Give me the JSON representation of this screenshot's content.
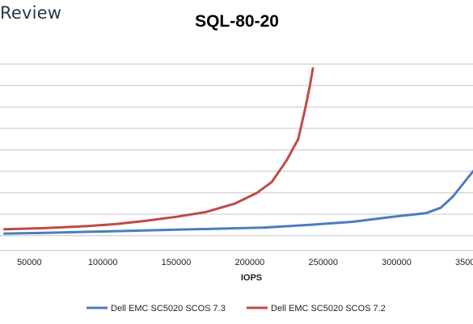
{
  "brand": {
    "text": "Review"
  },
  "chart_data": {
    "type": "line",
    "title": "SQL-80-20",
    "xlabel": "IOPS",
    "ylabel": "",
    "xlim": [
      30000,
      352000
    ],
    "ylim": [
      -5,
      88
    ],
    "x_tick_labels": [
      "50000",
      "100000",
      "150000",
      "200000",
      "250000",
      "300000",
      "350000"
    ],
    "x_ticks": [
      50000,
      100000,
      150000,
      200000,
      250000,
      300000,
      350000
    ],
    "y_grid": [
      0,
      10,
      20,
      30,
      40,
      50,
      60,
      70,
      80
    ],
    "grid": "horizontal",
    "legend_position": "bottom",
    "series": [
      {
        "name": "Dell EMC SC5020 SCOS 7.3",
        "color": "#4a7ebb",
        "points": [
          [
            33000,
            1.0
          ],
          [
            60000,
            1.3
          ],
          [
            90000,
            1.8
          ],
          [
            120000,
            2.3
          ],
          [
            150000,
            2.8
          ],
          [
            180000,
            3.3
          ],
          [
            210000,
            3.8
          ],
          [
            240000,
            5.0
          ],
          [
            270000,
            6.5
          ],
          [
            300000,
            9.0
          ],
          [
            320000,
            10.5
          ],
          [
            330000,
            13
          ],
          [
            338000,
            18
          ],
          [
            345000,
            24
          ],
          [
            352000,
            30
          ]
        ]
      },
      {
        "name": "Dell EMC SC5020 SCOS 7.2",
        "color": "#be4b48",
        "points": [
          [
            33000,
            3.0
          ],
          [
            60000,
            3.5
          ],
          [
            90000,
            4.5
          ],
          [
            110000,
            5.5
          ],
          [
            130000,
            7.0
          ],
          [
            150000,
            8.8
          ],
          [
            170000,
            11.0
          ],
          [
            190000,
            15
          ],
          [
            205000,
            20
          ],
          [
            215000,
            25
          ],
          [
            225000,
            35
          ],
          [
            233000,
            45
          ],
          [
            238000,
            60
          ],
          [
            241000,
            70
          ],
          [
            243000,
            78
          ]
        ]
      }
    ]
  }
}
